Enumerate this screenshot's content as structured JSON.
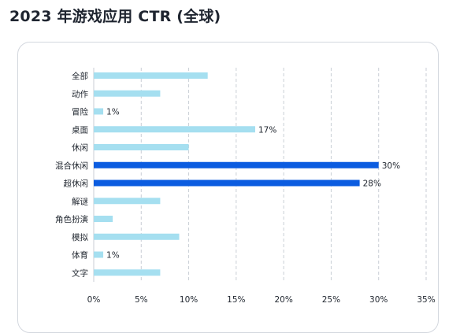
{
  "page": {
    "title": "2023 年游戏应用 CTR (全球)"
  },
  "chart_data": {
    "type": "bar",
    "orientation": "horizontal",
    "title": "2023 年游戏应用 CTR (全球)",
    "xlabel": "",
    "ylabel": "",
    "categories": [
      "全部",
      "动作",
      "冒险",
      "桌面",
      "休闲",
      "混合休闲",
      "超休闲",
      "解谜",
      "角色扮演",
      "模拟",
      "体育",
      "文字"
    ],
    "values": [
      12,
      7,
      1,
      17,
      10,
      30,
      28,
      7,
      2,
      9,
      1,
      7
    ],
    "data_labels": [
      "",
      "",
      "1%",
      "17%",
      "",
      "30%",
      "28%",
      "",
      "",
      "",
      "1%",
      ""
    ],
    "highlight": [
      false,
      false,
      false,
      false,
      false,
      true,
      true,
      false,
      false,
      false,
      false,
      false
    ],
    "xlim": [
      0,
      35
    ],
    "xticks": [
      0,
      5,
      10,
      15,
      20,
      25,
      30,
      35
    ],
    "xtick_labels": [
      "0%",
      "5%",
      "10%",
      "15%",
      "20%",
      "25%",
      "30%",
      "35%"
    ],
    "grid": "vertical dashed",
    "legend": "none",
    "colors": {
      "bar": "#a5dff0",
      "highlight": "#0b5ce0",
      "grid": "#c9ced6"
    }
  }
}
